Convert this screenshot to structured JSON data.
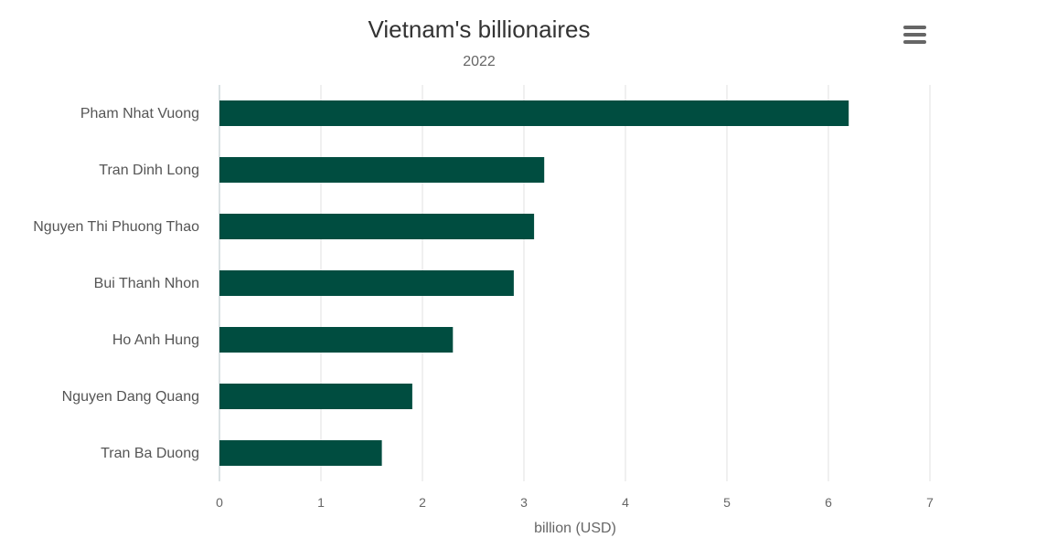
{
  "chart_data": {
    "type": "bar",
    "orientation": "horizontal",
    "title": "Vietnam's billionaires",
    "subtitle": "2022",
    "xlabel": "billion (USD)",
    "ylabel": "",
    "categories": [
      "Pham Nhat Vuong",
      "Tran Dinh Long",
      "Nguyen Thi Phuong Thao",
      "Bui Thanh Nhon",
      "Ho Anh Hung",
      "Nguyen Dang Quang",
      "Tran Ba Duong"
    ],
    "values": [
      6.2,
      3.2,
      3.1,
      2.9,
      2.3,
      1.9,
      1.6
    ],
    "xlim": [
      0,
      7
    ],
    "xticks": [
      "0",
      "1",
      "2",
      "3",
      "4",
      "5",
      "6",
      "7"
    ],
    "grid": true,
    "legend": "none",
    "bar_color": "#004d40"
  },
  "menu": {
    "icon": "hamburger-menu-icon"
  }
}
